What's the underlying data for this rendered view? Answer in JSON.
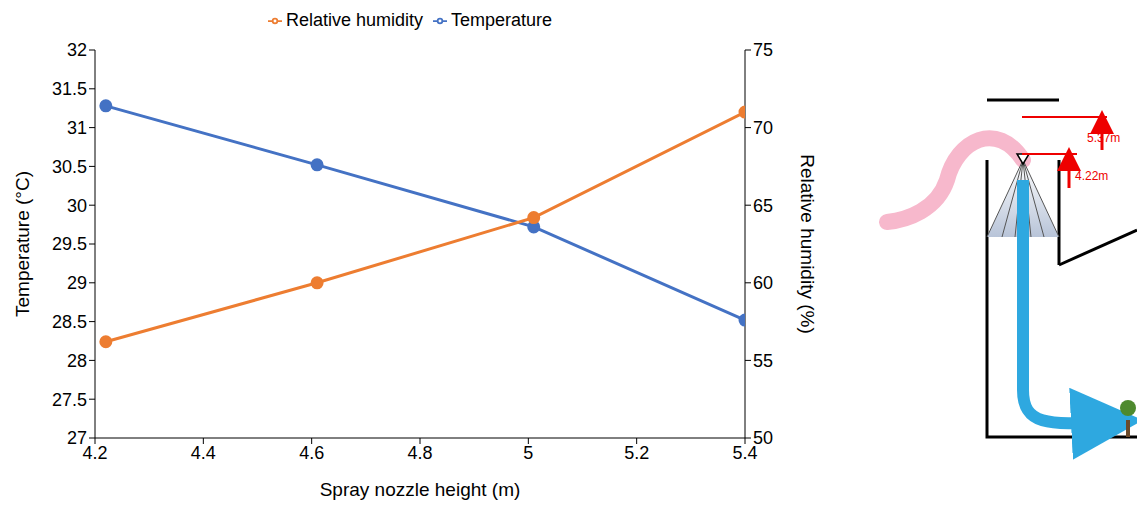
{
  "chart_data": {
    "type": "line",
    "x": [
      4.22,
      4.61,
      5.01,
      5.4
    ],
    "xlim": [
      4.2,
      5.4
    ],
    "xticks": [
      4.2,
      4.4,
      4.6,
      4.8,
      5,
      5.2,
      5.4
    ],
    "ylim": [
      27,
      32
    ],
    "yticks": [
      27,
      27.5,
      28,
      28.5,
      29,
      29.5,
      30,
      30.5,
      31,
      31.5,
      32
    ],
    "y2lim": [
      50,
      75
    ],
    "y2ticks": [
      50,
      55,
      60,
      65,
      70,
      75
    ],
    "x_label": "Spray nozzle height (m)",
    "y_label": "Temperature (°C)",
    "y2_label": "Relative humidity (%)",
    "legend": "top",
    "grid": false,
    "series": [
      {
        "name": "Temperature",
        "color": "#4472c4",
        "marker": "circle",
        "values": [
          31.28,
          30.52,
          29.72,
          28.52
        ]
      },
      {
        "name": "Relative humidity",
        "color": "#ed7d31",
        "marker": "circle",
        "axis": "y2",
        "values": [
          56.2,
          60.0,
          64.2,
          71.0
        ]
      }
    ]
  },
  "diagram": {
    "labels": [
      "5.37m",
      "4.22m"
    ]
  }
}
